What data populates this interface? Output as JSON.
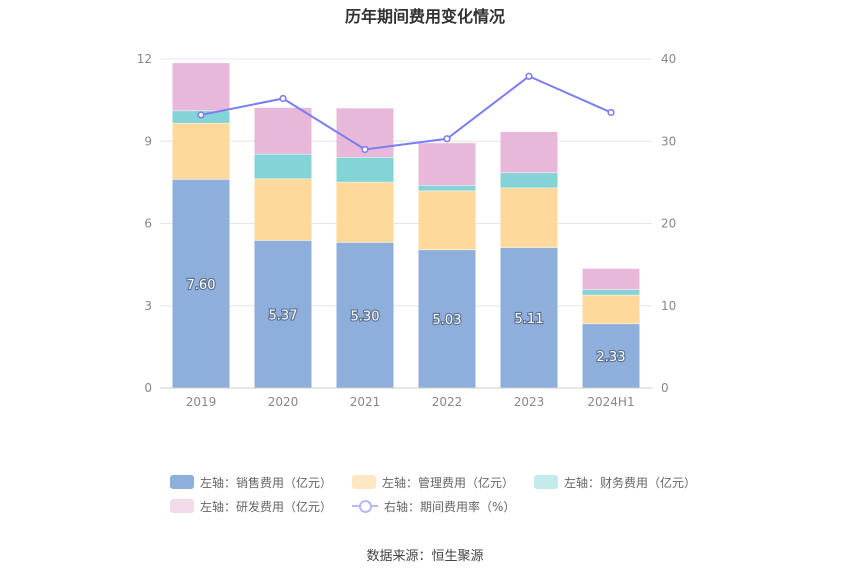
{
  "title": "历年期间费用变化情况",
  "source": "数据来源：恒生聚源",
  "colors": {
    "sales": "#8eaedb",
    "admin": "#ffd99b",
    "finance": "#84d3d6",
    "rd": "#e8b8da",
    "rate": "#7b7ef0",
    "grid": "#e3e6f0",
    "axis_text": "#888888",
    "label_text": "#ffffff"
  },
  "chart_data": {
    "type": "bar",
    "stacked": true,
    "categories": [
      "2019",
      "2020",
      "2021",
      "2022",
      "2023",
      "2024H1"
    ],
    "left_axis": {
      "ylim": [
        0,
        12
      ],
      "ticks": [
        "0",
        "3",
        "6",
        "9",
        "12"
      ]
    },
    "right_axis": {
      "ylim": [
        0,
        40
      ],
      "ticks": [
        "0",
        "10",
        "20",
        "30",
        "40"
      ]
    },
    "series": [
      {
        "name": "左轴：销售费用（亿元）",
        "key": "sales",
        "axis": "left",
        "type": "bar",
        "values": [
          7.6,
          5.37,
          5.3,
          5.03,
          5.11,
          2.33
        ],
        "labels": [
          "7.60",
          "5.37",
          "5.30",
          "5.03",
          "5.11",
          "2.33"
        ]
      },
      {
        "name": "左轴：管理费用（亿元）",
        "key": "admin",
        "axis": "left",
        "type": "bar",
        "values": [
          2.05,
          2.25,
          2.2,
          2.15,
          2.18,
          1.05
        ]
      },
      {
        "name": "左轴：财务费用（亿元）",
        "key": "finance",
        "axis": "left",
        "type": "bar",
        "values": [
          0.45,
          0.9,
          0.9,
          0.2,
          0.55,
          0.2
        ]
      },
      {
        "name": "左轴：研发费用（亿元）",
        "key": "rd",
        "axis": "left",
        "type": "bar",
        "values": [
          1.75,
          1.7,
          1.8,
          1.55,
          1.5,
          0.77
        ]
      },
      {
        "name": "右轴：期间费用率（%）",
        "key": "rate",
        "axis": "right",
        "type": "line",
        "values": [
          33.2,
          35.2,
          29.0,
          30.3,
          37.9,
          33.5
        ]
      }
    ],
    "grid": true,
    "legend_position": "bottom"
  }
}
